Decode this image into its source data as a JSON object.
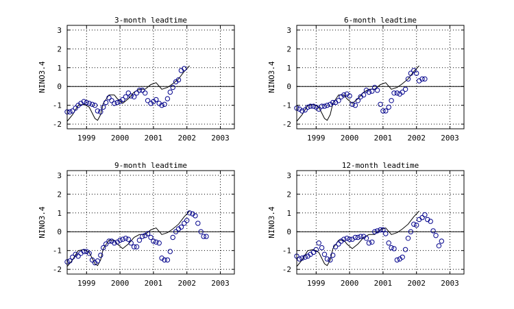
{
  "figure": {
    "observed_color": "#000000",
    "forecast_color": "#00008b",
    "grid": true,
    "grid_style": "dotted"
  },
  "chart_data": [
    {
      "type": "line",
      "title": "3-month leadtime",
      "xlabel": "",
      "ylabel": "NINO3.4",
      "xlim": [
        1998.42,
        2003.42
      ],
      "ylim": [
        -2.25,
        3.25
      ],
      "x_ticks": [
        1999,
        2000,
        2001,
        2002,
        2003
      ],
      "x_tick_labels": [
        "1999",
        "2000",
        "2001",
        "2002",
        "2003"
      ],
      "y_ticks": [
        -2,
        -1,
        0,
        1,
        2,
        3
      ],
      "y_tick_labels": [
        "-2",
        "-1",
        "0",
        "1",
        "2",
        "3"
      ],
      "series": [
        {
          "style": "line",
          "x": [
            1998.42,
            1998.58,
            1998.75,
            1998.92,
            1999.08,
            1999.25,
            1999.33,
            1999.42,
            1999.5,
            1999.67,
            1999.83,
            1999.92,
            2000.08,
            2000.25,
            2000.42,
            2000.58,
            2000.75,
            2000.92,
            2001.08,
            2001.25,
            2001.42,
            2001.58,
            2001.75,
            2001.92,
            2002.08
          ],
          "y": [
            -1.85,
            -1.5,
            -1.0,
            -0.95,
            -1.1,
            -1.7,
            -1.8,
            -1.5,
            -0.9,
            -0.45,
            -0.45,
            -0.65,
            -0.9,
            -0.65,
            -0.3,
            -0.15,
            -0.15,
            0.1,
            0.2,
            -0.15,
            -0.05,
            0.15,
            0.4,
            0.8,
            1.1
          ]
        },
        {
          "style": "circle",
          "x": [
            1998.42,
            1998.5,
            1998.58,
            1998.67,
            1998.75,
            1998.83,
            1998.92,
            1999.0,
            1999.08,
            1999.17,
            1999.25,
            1999.33,
            1999.42,
            1999.5,
            1999.58,
            1999.67,
            1999.75,
            1999.83,
            1999.92,
            2000.0,
            2000.08,
            2000.17,
            2000.25,
            2000.33,
            2000.42,
            2000.5,
            2000.58,
            2000.67,
            2000.75,
            2000.83,
            2000.92,
            2001.0,
            2001.08,
            2001.17,
            2001.25,
            2001.33,
            2001.42,
            2001.5,
            2001.58,
            2001.67,
            2001.75,
            2001.83,
            2001.92,
            2002.0,
            2002.08
          ],
          "y": [
            -1.35,
            -1.35,
            -1.3,
            -1.15,
            -1.0,
            -0.9,
            -0.8,
            -0.85,
            -0.9,
            -0.95,
            -1.0,
            -1.3,
            -1.35,
            -1.1,
            -0.85,
            -0.6,
            -0.75,
            -0.9,
            -0.85,
            -0.8,
            -0.7,
            -0.55,
            -0.35,
            -0.5,
            -0.55,
            -0.35,
            -0.2,
            -0.2,
            -0.35,
            -0.75,
            -0.9,
            -0.8,
            -0.7,
            -0.9,
            -1.0,
            -0.95,
            -0.65,
            -0.3,
            -0.05,
            0.25,
            0.35,
            0.85,
            0.95,
            null,
            null
          ]
        }
      ]
    },
    {
      "type": "line",
      "title": "6-month leadtime",
      "xlabel": "",
      "ylabel": "NINO3.4",
      "xlim": [
        1998.42,
        2003.42
      ],
      "ylim": [
        -2.25,
        3.25
      ],
      "x_ticks": [
        1999,
        2000,
        2001,
        2002,
        2003
      ],
      "x_tick_labels": [
        "1999",
        "2000",
        "2001",
        "2002",
        "2003"
      ],
      "y_ticks": [
        -2,
        -1,
        0,
        1,
        2,
        3
      ],
      "y_tick_labels": [
        "-2",
        "-1",
        "0",
        "1",
        "2",
        "3"
      ],
      "series": [
        {
          "style": "line",
          "x": [
            1998.42,
            1998.58,
            1998.75,
            1998.92,
            1999.08,
            1999.25,
            1999.33,
            1999.42,
            1999.5,
            1999.67,
            1999.83,
            1999.92,
            2000.08,
            2000.25,
            2000.42,
            2000.58,
            2000.75,
            2000.92,
            2001.08,
            2001.25,
            2001.42,
            2001.58,
            2001.75,
            2001.92,
            2002.08
          ],
          "y": [
            -1.85,
            -1.5,
            -1.0,
            -0.95,
            -1.1,
            -1.7,
            -1.8,
            -1.5,
            -0.9,
            -0.45,
            -0.45,
            -0.65,
            -0.9,
            -0.65,
            -0.3,
            -0.15,
            -0.15,
            0.1,
            0.2,
            -0.15,
            -0.05,
            0.15,
            0.4,
            0.8,
            1.1
          ]
        },
        {
          "style": "circle",
          "x": [
            1998.42,
            1998.5,
            1998.58,
            1998.67,
            1998.75,
            1998.83,
            1998.92,
            1999.0,
            1999.08,
            1999.17,
            1999.25,
            1999.33,
            1999.42,
            1999.5,
            1999.58,
            1999.67,
            1999.75,
            1999.83,
            1999.92,
            2000.0,
            2000.08,
            2000.17,
            2000.25,
            2000.33,
            2000.42,
            2000.5,
            2000.58,
            2000.67,
            2000.75,
            2000.83,
            2000.92,
            2001.0,
            2001.08,
            2001.17,
            2001.25,
            2001.33,
            2001.42,
            2001.5,
            2001.58,
            2001.67,
            2001.75,
            2001.83,
            2001.92,
            2002.0,
            2002.08,
            2002.17,
            2002.25,
            2002.33,
            2002.42,
            2002.5
          ],
          "y": [
            -1.15,
            -1.2,
            -1.3,
            -1.25,
            -1.1,
            -1.05,
            -1.05,
            -1.1,
            -1.2,
            -1.05,
            -1.05,
            -1.0,
            -0.95,
            -0.85,
            -0.85,
            -0.75,
            -0.55,
            -0.45,
            -0.4,
            -0.5,
            -0.95,
            -1.0,
            -0.75,
            -0.55,
            -0.45,
            -0.2,
            -0.3,
            -0.25,
            -0.05,
            -0.2,
            -0.95,
            -1.3,
            -1.3,
            -1.1,
            -0.75,
            -0.35,
            -0.35,
            -0.4,
            -0.3,
            -0.15,
            0.4,
            0.7,
            0.85,
            0.7,
            0.3,
            0.4,
            0.4,
            null,
            null,
            null
          ]
        }
      ]
    },
    {
      "type": "line",
      "title": "9-month leadtime",
      "xlabel": "",
      "ylabel": "NINO3.4",
      "xlim": [
        1998.42,
        2003.42
      ],
      "ylim": [
        -2.25,
        3.25
      ],
      "x_ticks": [
        1999,
        2000,
        2001,
        2002,
        2003
      ],
      "x_tick_labels": [
        "1999",
        "2000",
        "2001",
        "2002",
        "2003"
      ],
      "y_ticks": [
        -2,
        -1,
        0,
        1,
        2,
        3
      ],
      "y_tick_labels": [
        "-2",
        "-1",
        "0",
        "1",
        "2",
        "3"
      ],
      "series": [
        {
          "style": "line",
          "x": [
            1998.42,
            1998.58,
            1998.75,
            1998.92,
            1999.08,
            1999.25,
            1999.33,
            1999.42,
            1999.5,
            1999.67,
            1999.83,
            1999.92,
            2000.08,
            2000.25,
            2000.42,
            2000.58,
            2000.75,
            2000.92,
            2001.08,
            2001.25,
            2001.42,
            2001.58,
            2001.75,
            2001.92,
            2002.08
          ],
          "y": [
            -1.85,
            -1.5,
            -1.0,
            -0.95,
            -1.1,
            -1.7,
            -1.8,
            -1.5,
            -0.9,
            -0.45,
            -0.45,
            -0.65,
            -0.9,
            -0.65,
            -0.3,
            -0.15,
            -0.15,
            0.1,
            0.2,
            -0.15,
            -0.05,
            0.15,
            0.4,
            0.8,
            1.1
          ]
        },
        {
          "style": "circle",
          "x": [
            1998.42,
            1998.5,
            1998.58,
            1998.67,
            1998.75,
            1998.83,
            1998.92,
            1999.0,
            1999.08,
            1999.17,
            1999.25,
            1999.33,
            1999.42,
            1999.5,
            1999.58,
            1999.67,
            1999.75,
            1999.83,
            1999.92,
            2000.0,
            2000.08,
            2000.17,
            2000.25,
            2000.33,
            2000.42,
            2000.5,
            2000.58,
            2000.67,
            2000.75,
            2000.83,
            2000.92,
            2001.0,
            2001.08,
            2001.17,
            2001.25,
            2001.33,
            2001.42,
            2001.5,
            2001.58,
            2001.67,
            2001.75,
            2001.83,
            2001.92,
            2002.0,
            2002.08,
            2002.17,
            2002.25,
            2002.33,
            2002.42,
            2002.5,
            2002.58,
            2002.67,
            2002.75
          ],
          "y": [
            -1.6,
            -1.55,
            -1.35,
            -1.2,
            -1.3,
            -1.15,
            -1.05,
            -1.05,
            -1.15,
            -1.5,
            -1.65,
            -1.55,
            -1.25,
            -0.85,
            -0.65,
            -0.5,
            -0.5,
            -0.6,
            -0.55,
            -0.45,
            -0.4,
            -0.35,
            -0.4,
            -0.6,
            -0.8,
            -0.8,
            -0.45,
            -0.25,
            -0.2,
            -0.1,
            -0.3,
            -0.5,
            -0.55,
            -0.6,
            -1.4,
            -1.5,
            -1.5,
            -1.05,
            -0.3,
            0.0,
            0.15,
            0.25,
            0.45,
            0.6,
            1.0,
            0.95,
            0.85,
            0.45,
            0.0,
            -0.25,
            -0.25,
            null,
            null
          ]
        }
      ]
    },
    {
      "type": "line",
      "title": "12-month leadtime",
      "xlabel": "",
      "ylabel": "NINO3.4",
      "xlim": [
        1998.42,
        2003.42
      ],
      "ylim": [
        -2.25,
        3.25
      ],
      "x_ticks": [
        1999,
        2000,
        2001,
        2002,
        2003
      ],
      "x_tick_labels": [
        "1999",
        "2000",
        "2001",
        "2002",
        "2003"
      ],
      "y_ticks": [
        -2,
        -1,
        0,
        1,
        2,
        3
      ],
      "y_tick_labels": [
        "-2",
        "-1",
        "0",
        "1",
        "2",
        "3"
      ],
      "series": [
        {
          "style": "line",
          "x": [
            1998.42,
            1998.58,
            1998.75,
            1998.92,
            1999.08,
            1999.25,
            1999.33,
            1999.42,
            1999.5,
            1999.67,
            1999.83,
            1999.92,
            2000.08,
            2000.25,
            2000.42,
            2000.58,
            2000.75,
            2000.92,
            2001.08,
            2001.25,
            2001.42,
            2001.58,
            2001.75,
            2001.92,
            2002.08
          ],
          "y": [
            -1.85,
            -1.5,
            -1.0,
            -0.95,
            -1.1,
            -1.7,
            -1.8,
            -1.5,
            -0.9,
            -0.45,
            -0.45,
            -0.65,
            -0.9,
            -0.65,
            -0.3,
            -0.15,
            -0.15,
            0.1,
            0.2,
            -0.15,
            -0.05,
            0.15,
            0.4,
            0.8,
            1.1
          ]
        },
        {
          "style": "circle",
          "x": [
            1998.42,
            1998.5,
            1998.58,
            1998.67,
            1998.75,
            1998.83,
            1998.92,
            1999.0,
            1999.08,
            1999.17,
            1999.25,
            1999.33,
            1999.42,
            1999.5,
            1999.58,
            1999.67,
            1999.75,
            1999.83,
            1999.92,
            2000.0,
            2000.08,
            2000.17,
            2000.25,
            2000.33,
            2000.42,
            2000.5,
            2000.58,
            2000.67,
            2000.75,
            2000.83,
            2000.92,
            2001.0,
            2001.08,
            2001.17,
            2001.25,
            2001.33,
            2001.42,
            2001.5,
            2001.58,
            2001.67,
            2001.75,
            2001.83,
            2001.92,
            2002.0,
            2002.08,
            2002.17,
            2002.25,
            2002.33,
            2002.42,
            2002.5,
            2002.58,
            2002.67,
            2002.75,
            2002.83,
            2002.92,
            2003.0
          ],
          "y": [
            -1.3,
            -1.45,
            -1.4,
            -1.35,
            -1.3,
            -1.2,
            -1.1,
            -0.95,
            -0.6,
            -0.85,
            -1.2,
            -1.45,
            -1.5,
            -1.25,
            -0.8,
            -0.65,
            -0.5,
            -0.4,
            -0.35,
            -0.4,
            -0.4,
            -0.3,
            -0.3,
            -0.25,
            -0.25,
            -0.35,
            -0.6,
            -0.55,
            0.0,
            0.05,
            0.1,
            0.1,
            -0.1,
            -0.6,
            -0.85,
            -0.9,
            -1.5,
            -1.45,
            -1.35,
            -0.95,
            -0.35,
            0.0,
            0.4,
            0.35,
            0.65,
            0.75,
            0.9,
            0.65,
            0.55,
            0.05,
            -0.2,
            -0.75,
            -0.5,
            null,
            null,
            null
          ]
        }
      ]
    }
  ]
}
